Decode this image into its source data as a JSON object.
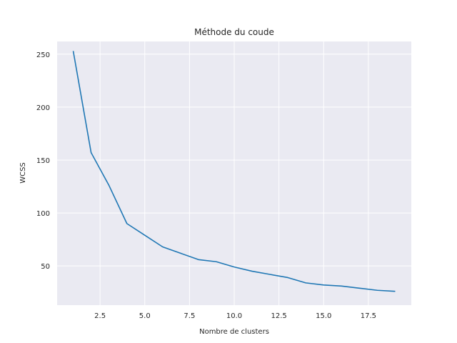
{
  "chart_data": {
    "type": "line",
    "title": "Méthode du coude",
    "xlabel": "Nombre de clusters",
    "ylabel": "WCSS",
    "xlim": [
      0.1,
      19.9
    ],
    "ylim": [
      13,
      262
    ],
    "xticks": [
      2.5,
      5.0,
      7.5,
      10.0,
      12.5,
      15.0,
      17.5
    ],
    "xtick_labels": [
      "2.5",
      "5.0",
      "7.5",
      "10.0",
      "12.5",
      "15.0",
      "17.5"
    ],
    "yticks": [
      50,
      100,
      150,
      200,
      250
    ],
    "ytick_labels": [
      "50",
      "100",
      "150",
      "200",
      "250"
    ],
    "grid": true,
    "background": "#eaeaf2",
    "series": [
      {
        "color": "#1f77b4",
        "x": [
          1,
          2,
          3,
          4,
          5,
          6,
          7,
          8,
          9,
          10,
          11,
          12,
          13,
          14,
          15,
          16,
          17,
          18,
          19
        ],
        "values": [
          253,
          157,
          126,
          90,
          79,
          68,
          62,
          56,
          54,
          49,
          45,
          42,
          39,
          34,
          32,
          31,
          29,
          27,
          26
        ]
      }
    ]
  }
}
